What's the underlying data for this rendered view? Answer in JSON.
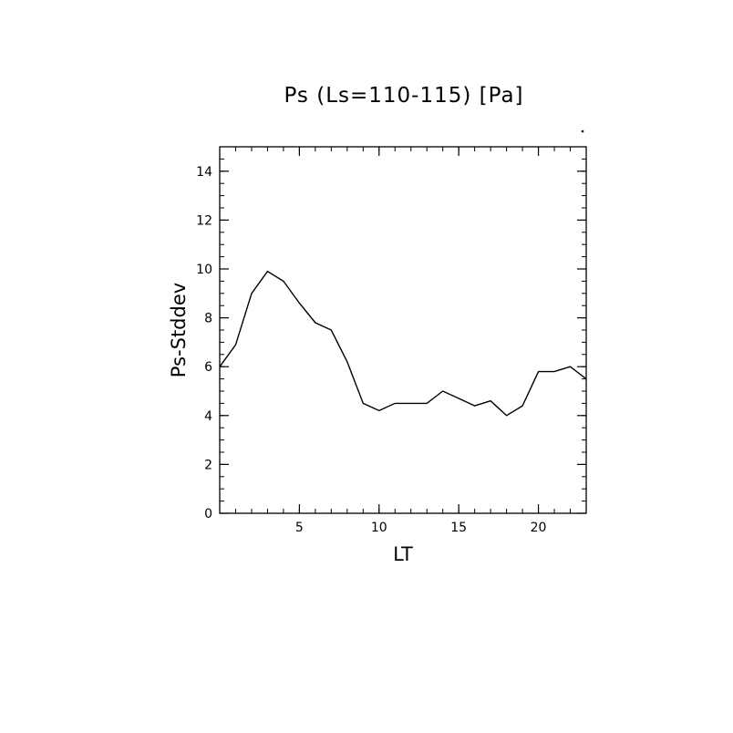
{
  "chart_data": {
    "type": "line",
    "title": "Ps (Ls=110-115) [Pa]",
    "xlabel": "LT",
    "ylabel": "Ps-Stddev",
    "xlim": [
      0,
      23
    ],
    "ylim": [
      0,
      15
    ],
    "x_ticks": [
      5,
      10,
      15,
      20
    ],
    "y_ticks": [
      0,
      2,
      4,
      6,
      8,
      10,
      12,
      14
    ],
    "x_tick_labels": [
      "5",
      "10",
      "15",
      "20"
    ],
    "y_tick_labels": [
      "0",
      "2",
      "4",
      "6",
      "8",
      "10",
      "12",
      "14"
    ],
    "grid": false,
    "legend": "none",
    "line_color": "#000000",
    "series": [
      {
        "x": [
          0,
          1,
          2,
          3,
          4,
          5,
          6,
          7,
          8,
          9,
          10,
          11,
          12,
          13,
          14,
          15,
          16,
          17,
          18,
          19,
          20,
          21,
          22,
          23
        ],
        "y": [
          6.0,
          6.9,
          9.0,
          9.9,
          9.5,
          8.6,
          7.8,
          7.5,
          6.2,
          4.5,
          4.2,
          4.5,
          4.5,
          4.5,
          5.0,
          4.7,
          4.4,
          4.6,
          4.0,
          4.4,
          5.8,
          5.8,
          6.0,
          5.5
        ]
      }
    ]
  }
}
